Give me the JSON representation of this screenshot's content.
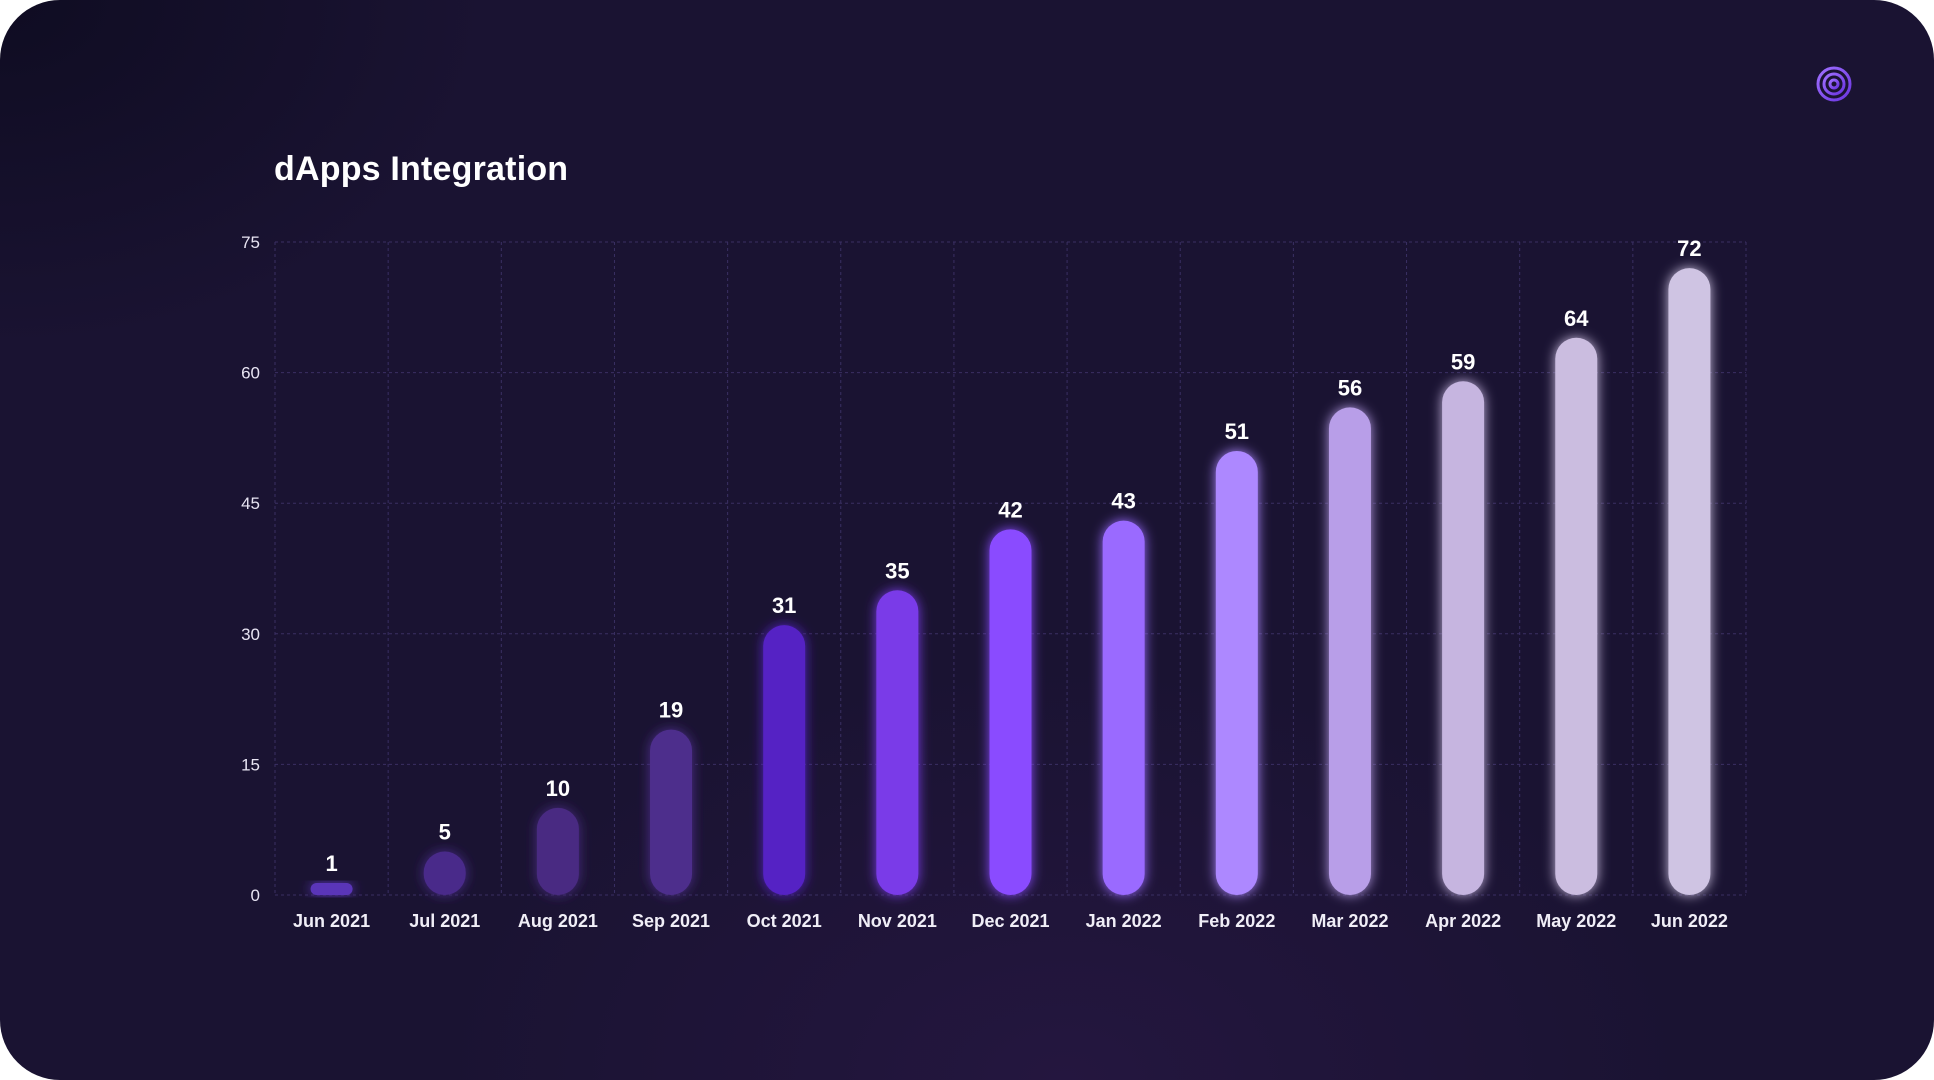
{
  "chart_data": {
    "type": "bar",
    "title": "dApps Integration",
    "xlabel": "",
    "ylabel": "",
    "categories": [
      "Jun 2021",
      "Jul 2021",
      "Aug 2021",
      "Sep 2021",
      "Oct 2021",
      "Nov 2021",
      "Dec 2021",
      "Jan 2022",
      "Feb 2022",
      "Mar 2022",
      "Apr 2022",
      "May 2022",
      "Jun 2022"
    ],
    "values": [
      1,
      5,
      10,
      19,
      31,
      35,
      42,
      43,
      51,
      56,
      59,
      64,
      72
    ],
    "ylim": [
      0,
      75
    ],
    "yticks": [
      0,
      15,
      30,
      45,
      60,
      75
    ],
    "grid": true,
    "data_labels": true,
    "bar_colors": [
      "#5a35b8",
      "#4a2a8a",
      "#4a2c82",
      "#4e2e8c",
      "#5520c4",
      "#7a3ae8",
      "#8a4cff",
      "#9a6aff",
      "#ad88ff",
      "#b89ee8",
      "#c6b5e0",
      "#cbbde0",
      "#cfc4e3"
    ]
  },
  "colors": {
    "background": "#1a1332",
    "grid": "#3a2f63",
    "accent": "#8a4cff"
  },
  "logo": {
    "icon": "brand-p-logo-icon"
  }
}
